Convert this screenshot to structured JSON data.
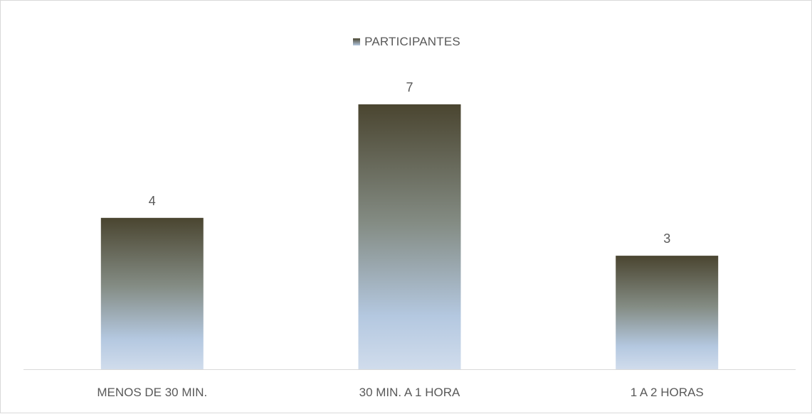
{
  "chart_data": {
    "type": "bar",
    "categories": [
      "MENOS DE 30 MIN.",
      "30 MIN. A 1 HORA",
      "1 A 2 HORAS"
    ],
    "series": [
      {
        "name": "PARTICIPANTES",
        "values": [
          4,
          7,
          3
        ]
      }
    ],
    "ylim": [
      0,
      8
    ],
    "legend": "top",
    "grid": false,
    "data_labels": true,
    "colors": {
      "bar_top": "#4a4530",
      "bar_mid": "#848c84",
      "bar_bottom": "#b4c8e0",
      "bar_base": "#d0dcec",
      "axis": "#d9d9d9",
      "text": "#595959"
    }
  }
}
